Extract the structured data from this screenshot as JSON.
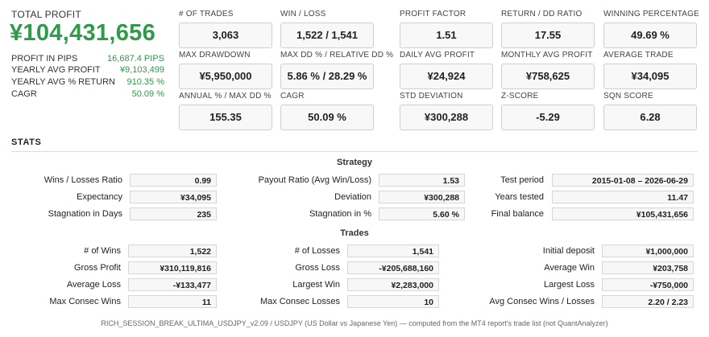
{
  "summary": {
    "total_profit_label": "TOTAL PROFIT",
    "total_profit_value": "¥104,431,656",
    "rows": [
      {
        "label": "PROFIT IN PIPS",
        "value": "16,687.4 PIPS"
      },
      {
        "label": "YEARLY AVG PROFIT",
        "value": "¥9,103,499"
      },
      {
        "label": "YEARLY AVG % RETURN",
        "value": "910.35 %"
      },
      {
        "label": "CAGR",
        "value": "50.09 %"
      }
    ]
  },
  "metrics": [
    {
      "label": "# OF TRADES",
      "value": "3,063"
    },
    {
      "label": "WIN / LOSS",
      "value": "1,522 / 1,541"
    },
    {
      "label": "PROFIT FACTOR",
      "value": "1.51"
    },
    {
      "label": "RETURN / DD RATIO",
      "value": "17.55"
    },
    {
      "label": "WINNING PERCENTAGE",
      "value": "49.69 %"
    },
    {
      "label": "MAX DRAWDOWN",
      "value": "¥5,950,000"
    },
    {
      "label": "MAX DD % / RELATIVE DD %",
      "value": "5.86 % / 28.29 %"
    },
    {
      "label": "DAILY AVG PROFIT",
      "value": "¥24,924"
    },
    {
      "label": "MONTHLY AVG PROFIT",
      "value": "¥758,625"
    },
    {
      "label": "AVERAGE TRADE",
      "value": "¥34,095"
    },
    {
      "label": "ANNUAL % / MAX DD %",
      "value": "155.35"
    },
    {
      "label": "CAGR",
      "value": "50.09 %"
    },
    {
      "label": "STD DEVIATION",
      "value": "¥300,288"
    },
    {
      "label": "Z-SCORE",
      "value": "-5.29"
    },
    {
      "label": "SQN SCORE",
      "value": "6.28"
    }
  ],
  "stats": {
    "heading": "STATS",
    "strategy_title": "Strategy",
    "strategy": [
      [
        {
          "label": "Wins / Losses Ratio",
          "value": "0.99"
        },
        {
          "label": "Expectancy",
          "value": "¥34,095"
        },
        {
          "label": "Stagnation in Days",
          "value": "235"
        }
      ],
      [
        {
          "label": "Payout Ratio (Avg Win/Loss)",
          "value": "1.53"
        },
        {
          "label": "Deviation",
          "value": "¥300,288"
        },
        {
          "label": "Stagnation in %",
          "value": "5.60 %"
        }
      ],
      [
        {
          "label": "Test period",
          "value": "2015-01-08 – 2026-06-29"
        },
        {
          "label": "Years tested",
          "value": "11.47"
        },
        {
          "label": "Final balance",
          "value": "¥105,431,656"
        }
      ]
    ],
    "trades_title": "Trades",
    "trades": [
      [
        {
          "label": "# of Wins",
          "value": "1,522"
        },
        {
          "label": "Gross Profit",
          "value": "¥310,119,816"
        },
        {
          "label": "Average Loss",
          "value": "-¥133,477"
        },
        {
          "label": "Max Consec Wins",
          "value": "11"
        }
      ],
      [
        {
          "label": "# of Losses",
          "value": "1,541"
        },
        {
          "label": "Gross Loss",
          "value": "-¥205,688,160"
        },
        {
          "label": "Largest Win",
          "value": "¥2,283,000"
        },
        {
          "label": "Max Consec Losses",
          "value": "10"
        }
      ],
      [
        {
          "label": "Initial deposit",
          "value": "¥1,000,000"
        },
        {
          "label": "Average Win",
          "value": "¥203,758"
        },
        {
          "label": "Largest Loss",
          "value": "-¥750,000"
        },
        {
          "label": "Avg Consec Wins / Losses",
          "value": "2.20 / 2.23"
        }
      ]
    ]
  },
  "footnote": "RICH_SESSION_BREAK_ULTIMA_USDJPY_v2.09 / USDJPY (US Dollar vs Japanese Yen) — computed from the MT4 report's trade list (not QuantAnalyzer)",
  "colors": {
    "accent_green": "#2e9a4a"
  }
}
